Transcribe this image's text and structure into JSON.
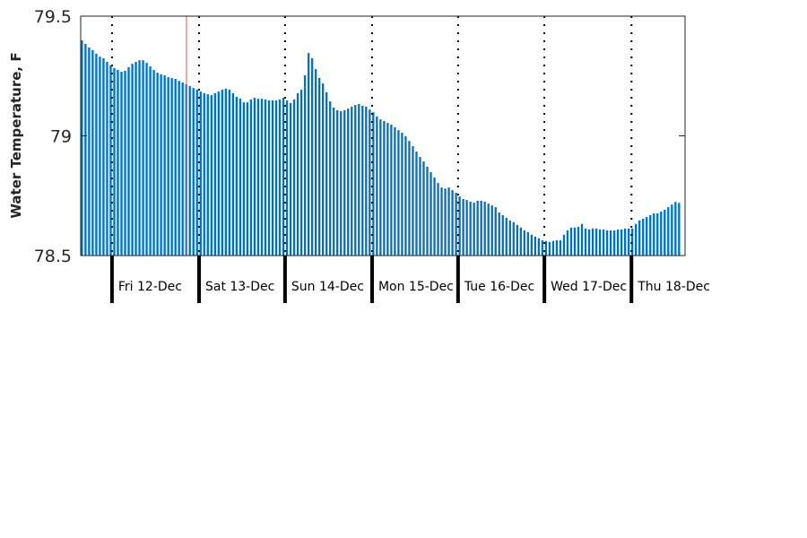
{
  "chart_data": {
    "type": "bar",
    "title": "",
    "xlabel": "",
    "ylabel": "Water Temperature, F",
    "ylim": [
      78.5,
      79.5
    ],
    "yticks": [
      "79.5",
      "79",
      "78.5"
    ],
    "ytick_values": [
      79.5,
      79,
      78.5
    ],
    "x_unit": "hourly bar index",
    "xlim": [
      0,
      168
    ],
    "day_labels": [
      "Fri 12-Dec",
      "Sat 13-Dec",
      "Sun 14-Dec",
      "Mon 15-Dec",
      "Tue 16-Dec",
      "Wed 17-Dec",
      "Thu 18-Dec"
    ],
    "day_boundaries": [
      8.7,
      32.9,
      56.8,
      81.0,
      104.9,
      128.9,
      153.1
    ],
    "current_time_marker": 29.4,
    "grid": false,
    "colors": {
      "bar": "#0072BD",
      "marker": "#E8504A",
      "axis": "#262626"
    },
    "values": [
      79.399,
      79.384,
      79.369,
      79.358,
      79.343,
      79.331,
      79.324,
      79.309,
      79.294,
      79.283,
      79.275,
      79.268,
      79.272,
      79.287,
      79.301,
      79.309,
      79.316,
      79.316,
      79.305,
      79.29,
      79.275,
      79.264,
      79.257,
      79.253,
      79.245,
      79.242,
      79.238,
      79.23,
      79.223,
      79.215,
      79.208,
      79.2,
      79.193,
      79.185,
      79.178,
      79.174,
      79.17,
      79.178,
      79.185,
      79.193,
      79.197,
      79.193,
      79.178,
      79.163,
      79.155,
      79.14,
      79.14,
      79.152,
      79.159,
      79.155,
      79.155,
      79.152,
      79.148,
      79.148,
      79.148,
      79.152,
      79.159,
      79.148,
      79.137,
      79.152,
      79.178,
      79.193,
      79.253,
      79.346,
      79.324,
      79.279,
      79.242,
      79.219,
      79.182,
      79.144,
      79.118,
      79.107,
      79.103,
      79.107,
      79.114,
      79.122,
      79.129,
      79.133,
      79.126,
      79.122,
      79.11,
      79.099,
      79.081,
      79.069,
      79.062,
      79.054,
      79.047,
      79.036,
      79.024,
      79.013,
      78.998,
      78.979,
      78.957,
      78.934,
      78.912,
      78.893,
      78.871,
      78.848,
      78.826,
      78.803,
      78.784,
      78.78,
      78.784,
      78.773,
      78.762,
      78.747,
      78.736,
      78.732,
      78.725,
      78.721,
      78.729,
      78.729,
      78.725,
      78.717,
      78.71,
      78.702,
      78.68,
      78.669,
      78.658,
      78.646,
      78.639,
      78.628,
      78.617,
      78.605,
      78.598,
      78.587,
      78.579,
      78.572,
      78.564,
      78.561,
      78.557,
      78.561,
      78.564,
      78.564,
      78.587,
      78.605,
      78.617,
      78.617,
      78.62,
      78.632,
      78.613,
      78.609,
      78.613,
      78.613,
      78.609,
      78.609,
      78.605,
      78.605,
      78.605,
      78.609,
      78.609,
      78.613,
      78.613,
      78.613,
      78.632,
      78.647,
      78.654,
      78.661,
      78.669,
      78.676,
      78.676,
      78.684,
      78.691,
      78.702,
      78.713,
      78.724,
      78.72
    ]
  }
}
